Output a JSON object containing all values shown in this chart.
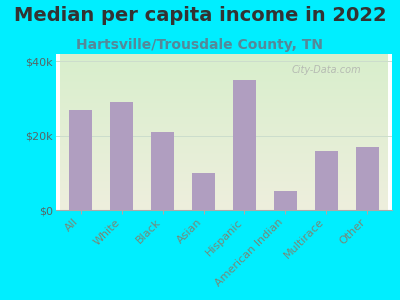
{
  "title": "Median per capita income in 2022",
  "subtitle": "Hartsville/Trousdale County, TN",
  "categories": [
    "All",
    "White",
    "Black",
    "Asian",
    "Hispanic",
    "American Indian",
    "Multirace",
    "Other"
  ],
  "values": [
    27000,
    29000,
    21000,
    10000,
    35000,
    5000,
    16000,
    17000
  ],
  "bar_color": "#b09ec0",
  "background_outer": "#00eeff",
  "title_color": "#333333",
  "subtitle_color": "#558899",
  "ylabel_ticks": [
    "$0",
    "$20k",
    "$40k"
  ],
  "ytick_vals": [
    0,
    20000,
    40000
  ],
  "ylim": [
    0,
    42000
  ],
  "watermark": "City-Data.com",
  "title_fontsize": 14,
  "subtitle_fontsize": 10,
  "tick_fontsize": 8,
  "xtick_color": "#778877",
  "ytick_color": "#556666",
  "grid_color": "#ccddcc",
  "bg_top_left": "#d8eecc",
  "bg_bottom_right": "#eeeedd"
}
